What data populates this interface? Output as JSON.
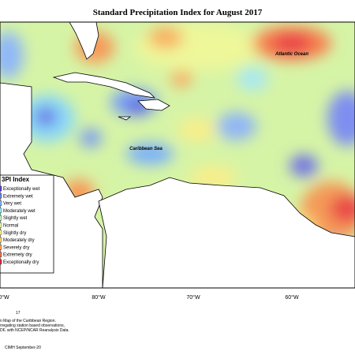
{
  "title": "Standard Precipitation Index for August 2017",
  "labels": {
    "ocean": "Atlantic Ocean",
    "sea": "Caribbean Sea"
  },
  "legend": {
    "title": "3PI Index",
    "items": [
      {
        "label": "Exceptionally wet",
        "color": "#5a3fd6"
      },
      {
        "label": "Extremely wet",
        "color": "#6f7ff0"
      },
      {
        "label": "Very wet",
        "color": "#7ab8ff"
      },
      {
        "label": "Moderately wet",
        "color": "#8fe6f5"
      },
      {
        "label": "Slightly wet",
        "color": "#b8f5b0"
      },
      {
        "label": "Normal",
        "color": "#e3f7a0"
      },
      {
        "label": "Slightly dry",
        "color": "#f8f088"
      },
      {
        "label": "Moderately dry",
        "color": "#fcd070"
      },
      {
        "label": "Severely dry",
        "color": "#f9a35a"
      },
      {
        "label": "Extremely dry",
        "color": "#f06a4a"
      },
      {
        "label": "Exceptionally dry",
        "color": "#d8283a"
      }
    ]
  },
  "longitudes": [
    "0°W",
    "80°W",
    "70°W",
    "60°W"
  ],
  "footer": [
    "17",
    "n Map of the Caribbean Region.",
    "rregating station based observations,",
    "DF, with NCEP/NCAR Reanalysis Data.",
    "CIMH September-20"
  ]
}
